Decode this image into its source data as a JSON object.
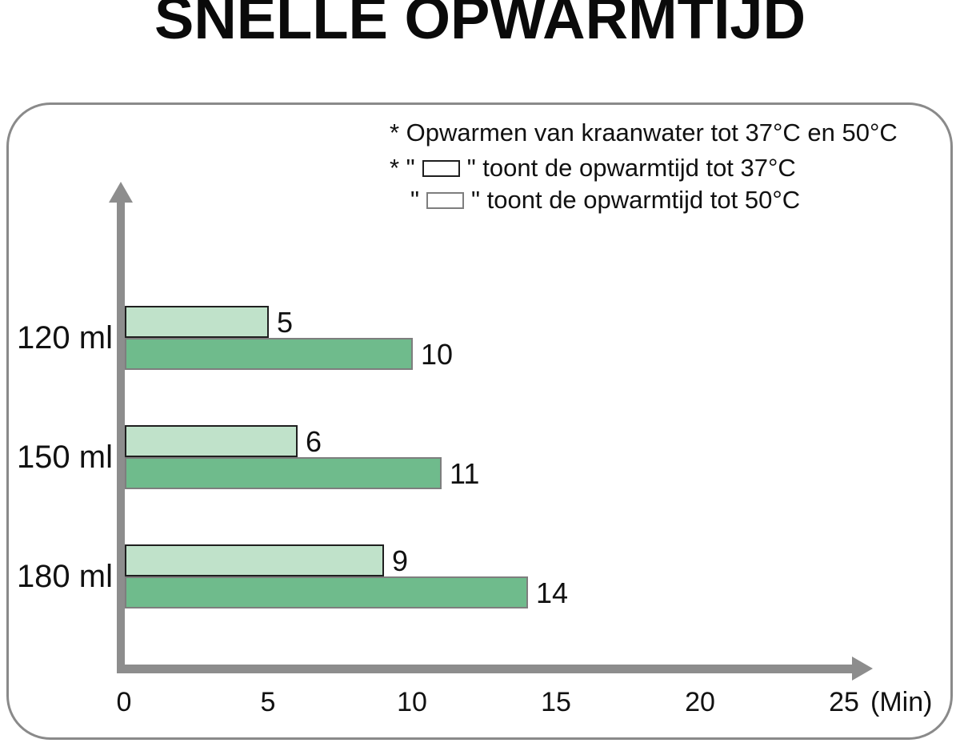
{
  "title": "SNELLE OPWARMTIJD",
  "legend": {
    "note": "* Opwarmen van kraanwater tot 37°C en 50°C",
    "entry_37": {
      "prefix": "* \"",
      "suffix": "\" toont de opwarmtijd tot 37°C"
    },
    "entry_50": {
      "prefix": "\"",
      "suffix": "\" toont de opwarmtijd tot 50°C"
    }
  },
  "chart_data": {
    "type": "bar",
    "orientation": "horizontal",
    "title": "SNELLE OPWARMTIJD",
    "categories": [
      "120 ml",
      "150 ml",
      "180 ml"
    ],
    "series": [
      {
        "name": "opwarmtijd tot 37°C",
        "color": "#c0e2ca",
        "border_color": "#1f1f1f",
        "values": [
          5,
          6,
          9
        ]
      },
      {
        "name": "opwarmtijd tot 50°C",
        "color": "#6fbb8c",
        "border_color": "#7e7e7e",
        "values": [
          10,
          11,
          14
        ]
      }
    ],
    "xlabel": "(Min)",
    "x_ticks": [
      "0",
      "5",
      "10",
      "15",
      "20",
      "25"
    ],
    "xlim": [
      0,
      25
    ],
    "grid": false,
    "legend_position": "top-right",
    "value_labels": true
  },
  "colors": {
    "background": "#ffffff",
    "axis": "#8d8d8d",
    "panel_border": "#8a8a8a",
    "text": "#111111",
    "series_37_fill": "#c0e2ca",
    "series_50_fill": "#6fbb8c"
  }
}
